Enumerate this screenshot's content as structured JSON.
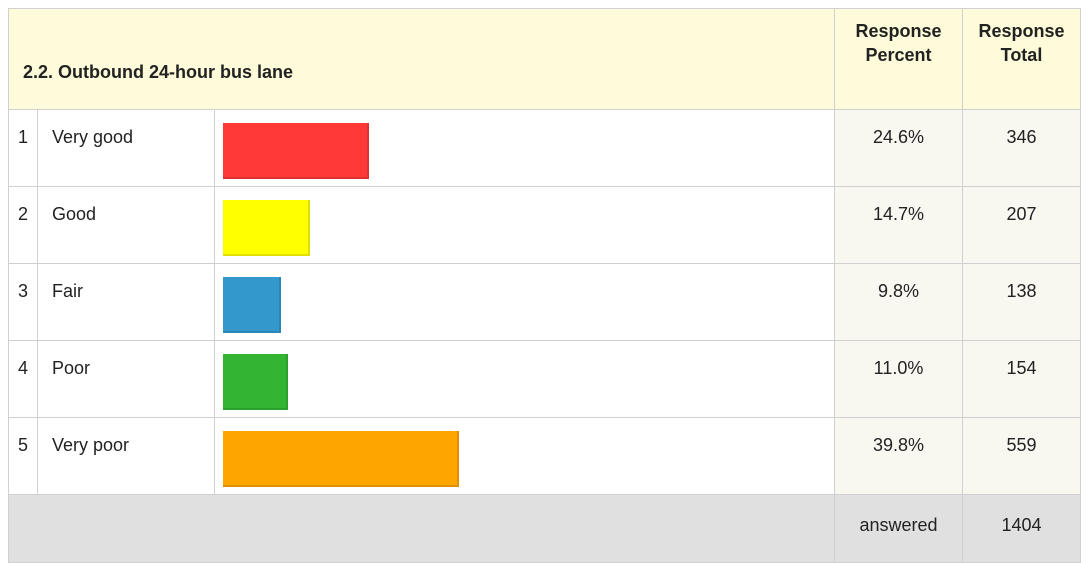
{
  "header": {
    "title": "2.2. Outbound 24-hour bus lane",
    "percent_heading": "Response Percent",
    "total_heading": "Response Total"
  },
  "table": {
    "rows": [
      {
        "index": 1,
        "label": "Very good",
        "percent": 24.6,
        "percent_label": "24.6%",
        "total": 346,
        "color": "#ff3838"
      },
      {
        "index": 2,
        "label": "Good",
        "percent": 14.7,
        "percent_label": "14.7%",
        "total": 207,
        "color": "#ffff00"
      },
      {
        "index": 3,
        "label": "Fair",
        "percent": 9.8,
        "percent_label": "9.8%",
        "total": 138,
        "color": "#3399cc"
      },
      {
        "index": 4,
        "label": "Poor",
        "percent": 11.0,
        "percent_label": "11.0%",
        "total": 154,
        "color": "#33b533"
      },
      {
        "index": 5,
        "label": "Very poor",
        "percent": 39.8,
        "percent_label": "39.8%",
        "total": 559,
        "color": "#ffa500"
      }
    ]
  },
  "footer": {
    "label": "answered",
    "total": 1404
  }
}
